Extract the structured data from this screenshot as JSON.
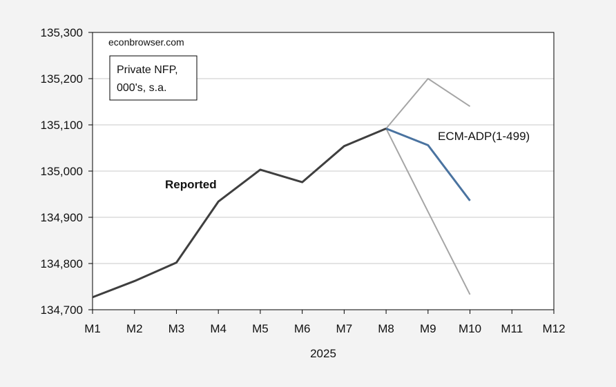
{
  "chart_data": {
    "type": "line",
    "title": "",
    "xlabel": "2025",
    "ylabel": "",
    "categories": [
      "M1",
      "M2",
      "M3",
      "M4",
      "M5",
      "M6",
      "M7",
      "M8",
      "M9",
      "M10",
      "M11",
      "M12"
    ],
    "ylim": [
      134700,
      135300
    ],
    "yticks": [
      134700,
      134800,
      134900,
      135000,
      135100,
      135200,
      135300
    ],
    "ytick_labels": [
      "134,700",
      "134,800",
      "134,900",
      "135,000",
      "135,100",
      "135,200",
      "135,300"
    ],
    "grid": "horizontal",
    "series": [
      {
        "name": "Reported",
        "color": "#3f3f3f",
        "x": [
          "M1",
          "M2",
          "M3",
          "M4",
          "M5",
          "M6",
          "M7",
          "M8"
        ],
        "values": [
          134727,
          134762,
          134802,
          134934,
          135003,
          134976,
          135054,
          135092
        ]
      },
      {
        "name": "ECM-ADP(1-499)",
        "color": "#4a73a0",
        "x": [
          "M8",
          "M9",
          "M10"
        ],
        "values": [
          135092,
          135056,
          134936
        ]
      },
      {
        "name": "",
        "color": "#a5a5a5",
        "x": [
          "M8",
          "M9",
          "M10"
        ],
        "values": [
          135092,
          135200,
          135140
        ]
      },
      {
        "name": "",
        "color": "#a5a5a5",
        "x": [
          "M8",
          "M9",
          "M10"
        ],
        "values": [
          135092,
          134912,
          134733
        ]
      }
    ],
    "annotations": {
      "source": "econbrowser.com",
      "box_line1": "Private NFP,",
      "box_line2": "000's, s.a.",
      "reported_label": "Reported",
      "forecast_label": "ECM-ADP(1-499)"
    }
  }
}
